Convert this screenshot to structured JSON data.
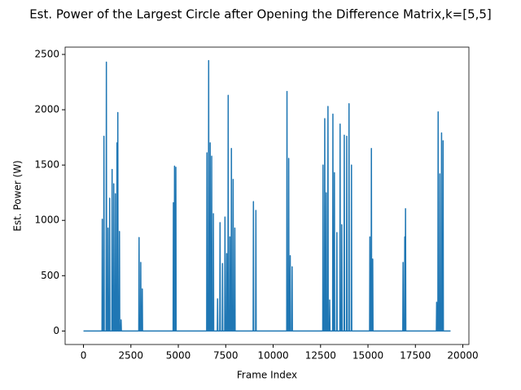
{
  "chart_data": {
    "type": "line",
    "title": "Est. Power of the Largest Circle after Opening the Difference Matrix,k=[5,5]",
    "x_label": "Frame Index",
    "y_label": "Est. Power (W)",
    "xlim": [
      -968,
      20321
    ],
    "ylim": [
      -122,
      2566
    ],
    "xticks": [
      0,
      2500,
      5000,
      7500,
      10000,
      12500,
      15000,
      17500,
      20000
    ],
    "yticks": [
      0,
      500,
      1000,
      1500,
      2000,
      2500
    ],
    "grid": false,
    "series": [
      {
        "name": "power",
        "color": "#1f77b4",
        "x": [
          0,
          976,
          991,
          1006,
          1063,
          1078,
          1093,
          1192,
          1207,
          1222,
          1278,
          1293,
          1308,
          1364,
          1379,
          1394,
          1494,
          1509,
          1524,
          1580,
          1595,
          1610,
          1666,
          1681,
          1696,
          1752,
          1767,
          1782,
          1795,
          1810,
          1825,
          1882,
          1897,
          1912,
          1968,
          1983,
          1998,
          2915,
          2930,
          2945,
          3005,
          3020,
          3035,
          3085,
          3100,
          3115,
          4725,
          4740,
          4755,
          4785,
          4800,
          4815,
          4855,
          4870,
          4885,
          6495,
          6510,
          6525,
          6585,
          6600,
          6615,
          6665,
          6680,
          6695,
          6745,
          6760,
          6775,
          6835,
          6850,
          6865,
          7055,
          7070,
          7085,
          7185,
          7200,
          7215,
          7315,
          7330,
          7345,
          7445,
          7460,
          7475,
          7535,
          7550,
          7565,
          7615,
          7630,
          7645,
          7705,
          7720,
          7735,
          7785,
          7800,
          7815,
          7875,
          7890,
          7905,
          7965,
          7980,
          7995,
          8945,
          8960,
          8975,
          9075,
          9090,
          9105,
          10715,
          10730,
          10745,
          10805,
          10820,
          10835,
          10885,
          10900,
          10915,
          10985,
          11000,
          11015,
          12615,
          12630,
          12645,
          12705,
          12720,
          12735,
          12785,
          12800,
          12815,
          12875,
          12890,
          12905,
          12965,
          12980,
          12995,
          13135,
          13150,
          13165,
          13215,
          13230,
          13245,
          13345,
          13360,
          13375,
          13515,
          13530,
          13545,
          13605,
          13620,
          13635,
          13735,
          13750,
          13765,
          13865,
          13880,
          13895,
          13985,
          14000,
          14015,
          14115,
          14130,
          14145,
          15085,
          15100,
          15115,
          15165,
          15180,
          15195,
          15235,
          15250,
          15265,
          16835,
          16850,
          16865,
          16925,
          16940,
          16955,
          16965,
          16980,
          16995,
          18605,
          18620,
          18635,
          18685,
          18700,
          18715,
          18775,
          18790,
          18805,
          18865,
          18880,
          18895,
          18945,
          18960,
          18975,
          19353
        ],
        "values": [
          0,
          0,
          1010,
          0,
          0,
          1760,
          0,
          0,
          2430,
          0,
          0,
          930,
          0,
          0,
          1200,
          0,
          0,
          1460,
          0,
          0,
          1330,
          0,
          0,
          1240,
          0,
          0,
          1700,
          0,
          0,
          1975,
          0,
          0,
          900,
          0,
          0,
          100,
          0,
          0,
          845,
          0,
          0,
          620,
          0,
          0,
          380,
          0,
          0,
          1160,
          0,
          0,
          1490,
          0,
          0,
          1480,
          0,
          0,
          1610,
          0,
          0,
          2444,
          0,
          0,
          1700,
          0,
          0,
          1580,
          0,
          0,
          1060,
          0,
          0,
          290,
          0,
          0,
          980,
          0,
          0,
          610,
          0,
          0,
          1030,
          0,
          0,
          700,
          0,
          0,
          2130,
          0,
          0,
          850,
          0,
          0,
          1650,
          0,
          0,
          1370,
          0,
          0,
          930,
          0,
          0,
          1170,
          0,
          0,
          1090,
          0,
          0,
          2165,
          0,
          0,
          1560,
          0,
          0,
          680,
          0,
          0,
          580,
          0,
          0,
          1500,
          0,
          0,
          1920,
          0,
          0,
          1250,
          0,
          0,
          2030,
          0,
          0,
          280,
          0,
          0,
          1960,
          0,
          0,
          1430,
          0,
          0,
          890,
          0,
          0,
          1870,
          0,
          0,
          960,
          0,
          0,
          1770,
          0,
          0,
          1760,
          0,
          0,
          2055,
          0,
          0,
          1500,
          0,
          0,
          850,
          0,
          0,
          1650,
          0,
          0,
          650,
          0,
          0,
          620,
          0,
          0,
          850,
          0,
          0,
          1105,
          0,
          0,
          260,
          0,
          0,
          1980,
          0,
          0,
          1420,
          0,
          0,
          1790,
          0,
          0,
          1720,
          0,
          0
        ]
      }
    ]
  }
}
